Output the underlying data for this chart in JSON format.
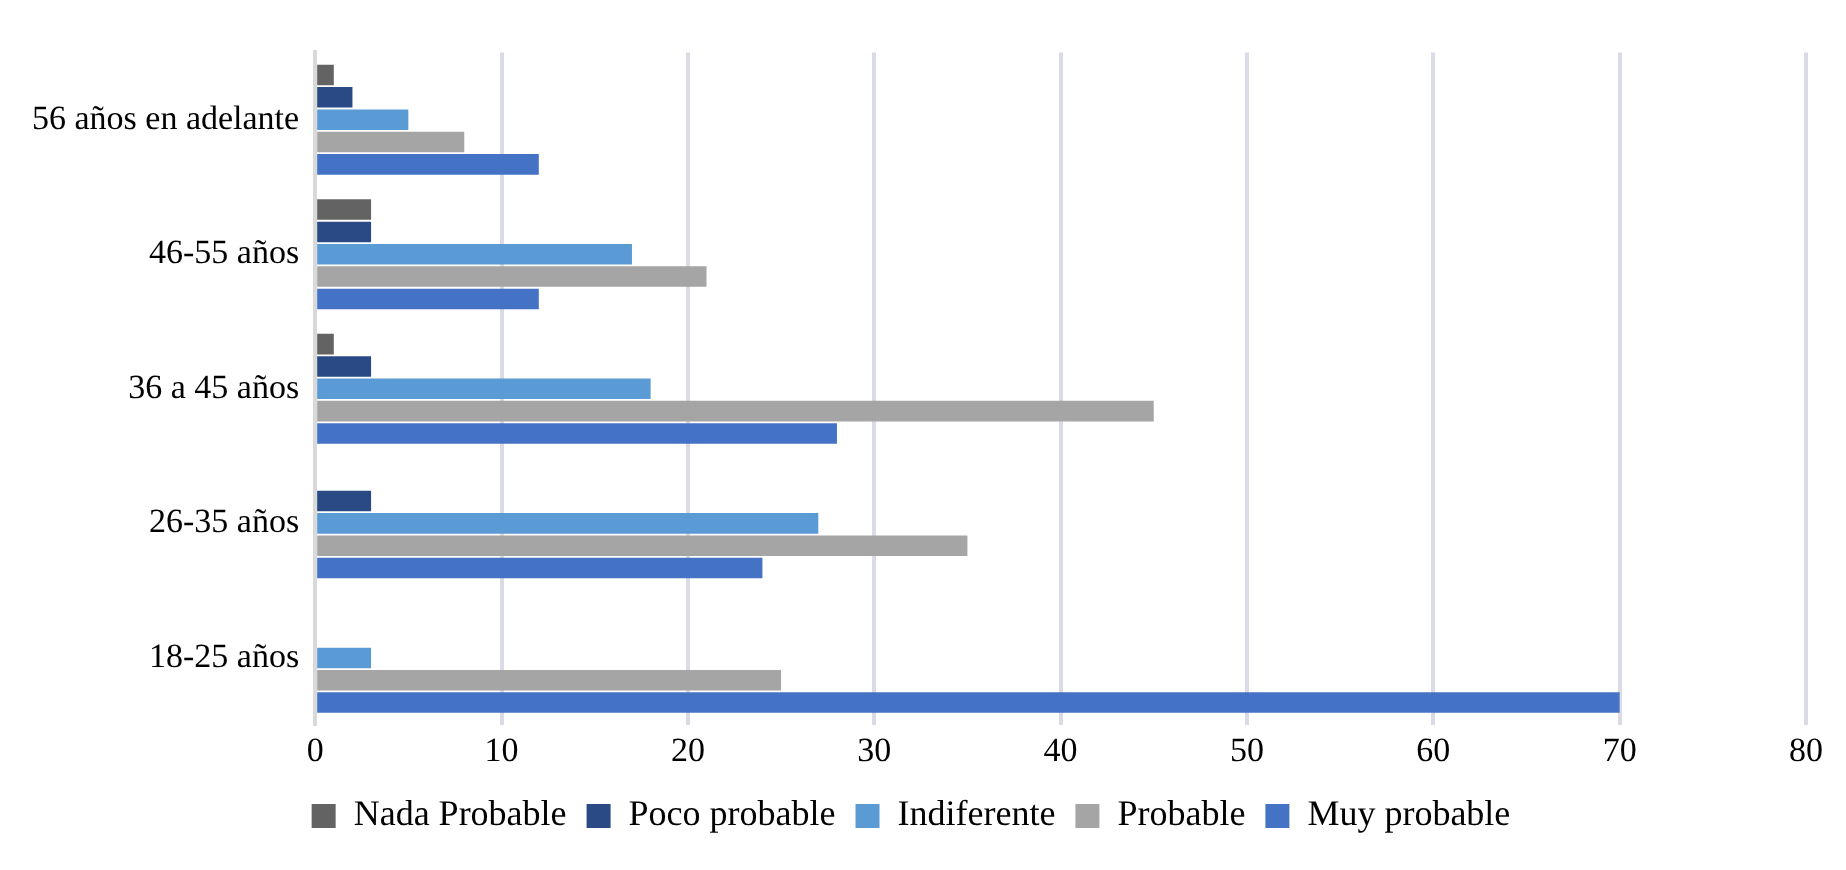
{
  "chart_data": {
    "type": "bar",
    "orientation": "horizontal",
    "categories": [
      "56 años en adelante",
      "46-55 años",
      "36 a 45 años",
      "26-35 años",
      "18-25 años"
    ],
    "series": [
      {
        "name": "Nada Probable",
        "color": "#636363",
        "values": [
          1,
          3,
          1,
          0,
          0
        ]
      },
      {
        "name": "Poco probable",
        "color": "#2a4a85",
        "values": [
          2,
          3,
          3,
          3,
          0
        ]
      },
      {
        "name": "Indiferente",
        "color": "#5b9bd5",
        "values": [
          5,
          17,
          18,
          27,
          3
        ]
      },
      {
        "name": "Probable",
        "color": "#a5a5a5",
        "values": [
          8,
          21,
          45,
          35,
          25
        ]
      },
      {
        "name": "Muy probable",
        "color": "#4472c4",
        "values": [
          12,
          12,
          28,
          24,
          70
        ]
      }
    ],
    "xlim": [
      0,
      80
    ],
    "xticks": [
      0,
      10,
      20,
      30,
      40,
      50,
      60,
      70,
      80
    ],
    "grid": "x",
    "legend": "bottom"
  }
}
